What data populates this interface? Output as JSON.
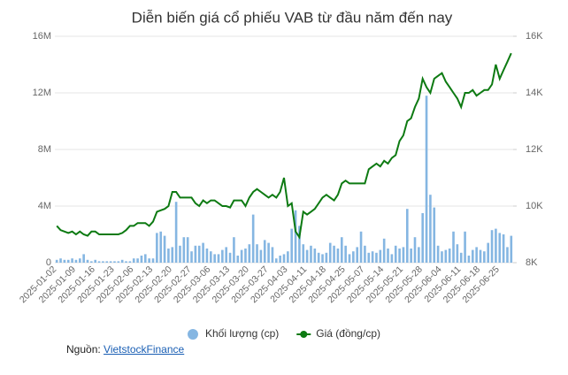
{
  "chart_data": {
    "type": "bar-line",
    "title": "Diễn biến giá cổ phiếu VAB từ đầu năm đến nay",
    "categories": [
      "2025-01-02",
      null,
      null,
      null,
      null,
      "2025-01-09",
      null,
      null,
      null,
      null,
      "2025-01-16",
      null,
      null,
      null,
      null,
      "2025-01-23",
      null,
      null,
      null,
      null,
      "2025-02-06",
      null,
      null,
      null,
      null,
      "2025-02-13",
      null,
      null,
      null,
      null,
      "2025-02-20",
      null,
      null,
      null,
      null,
      "2025-02-27",
      null,
      null,
      null,
      null,
      "2025-03-06",
      null,
      null,
      null,
      null,
      "2025-03-13",
      null,
      null,
      null,
      null,
      "2025-03-20",
      null,
      null,
      null,
      null,
      "2025-03-27",
      null,
      null,
      null,
      null,
      "2025-04-03",
      null,
      null,
      null,
      null,
      "2025-04-11",
      null,
      null,
      null,
      null,
      "2025-04-18",
      null,
      null,
      null,
      null,
      "2025-04-25",
      null,
      null,
      null,
      null,
      "2025-05-07",
      null,
      null,
      null,
      null,
      "2025-05-14",
      null,
      null,
      null,
      null,
      "2025-05-21",
      null,
      null,
      null,
      null,
      "2025-05-28",
      null,
      null,
      null,
      null,
      "2025-06-04",
      null,
      null,
      null,
      null,
      "2025-06-11",
      null,
      null,
      null,
      null,
      "2025-06-18",
      null,
      null,
      null,
      null,
      "2025-06-25",
      null,
      null,
      null
    ],
    "series": [
      {
        "name": "Khối lượng (cp)",
        "type": "bar",
        "color": "#85b6e2",
        "values": [
          0.2,
          0.3,
          0.2,
          0.2,
          0.3,
          0.2,
          0.3,
          0.6,
          0.2,
          0.1,
          0.2,
          0.1,
          0.1,
          0.1,
          0.1,
          0.1,
          0.1,
          0.2,
          0.1,
          0.1,
          0.3,
          0.3,
          0.5,
          0.6,
          0.3,
          0.3,
          2.1,
          2.2,
          1.9,
          1.0,
          1.1,
          4.3,
          1.2,
          1.8,
          1.8,
          0.8,
          1.2,
          1.2,
          1.4,
          1.0,
          0.8,
          0.6,
          0.6,
          0.9,
          1.1,
          0.7,
          1.8,
          0.5,
          0.9,
          1.0,
          1.3,
          3.4,
          1.3,
          0.9,
          1.6,
          1.4,
          1.1,
          0.3,
          0.5,
          0.6,
          0.8,
          2.4,
          3.7,
          2.6,
          1.3,
          0.9,
          1.2,
          1.0,
          0.7,
          0.6,
          0.7,
          1.4,
          1.2,
          1.0,
          1.8,
          1.2,
          0.6,
          0.8,
          1.1,
          2.2,
          1.2,
          0.7,
          0.8,
          0.7,
          0.9,
          1.7,
          1.0,
          0.6,
          1.2,
          1.0,
          1.1,
          3.8,
          1.0,
          1.8,
          1.1,
          3.5,
          11.8,
          4.8,
          3.9,
          1.2,
          0.8,
          0.9,
          1.0,
          2.2,
          1.3,
          0.7,
          2.2,
          0.5,
          0.9,
          1.1,
          0.9,
          0.8,
          1.4,
          2.3,
          2.4,
          2.1,
          2.0,
          1.1,
          1.9
        ]
      },
      {
        "name": "Giá (đồng/cp)",
        "type": "line",
        "axis": "y2",
        "color": "#0d7a12",
        "values": [
          9.3,
          9.15,
          9.1,
          9.05,
          9.1,
          9.0,
          9.1,
          9.0,
          8.95,
          9.1,
          9.1,
          9.0,
          9.0,
          9.0,
          9.0,
          9.0,
          9.0,
          9.05,
          9.15,
          9.3,
          9.3,
          9.4,
          9.4,
          9.4,
          9.3,
          9.45,
          9.8,
          9.85,
          9.9,
          10.0,
          10.5,
          10.5,
          10.3,
          10.3,
          10.3,
          10.3,
          10.1,
          10.0,
          10.2,
          10.1,
          10.2,
          10.2,
          10.1,
          10.0,
          10.0,
          9.95,
          10.2,
          10.2,
          10.2,
          10.0,
          10.3,
          10.5,
          10.6,
          10.5,
          10.4,
          10.3,
          10.4,
          10.3,
          10.5,
          11.0,
          10.0,
          10.1,
          9.1,
          8.9,
          9.8,
          9.7,
          9.8,
          9.9,
          10.1,
          10.3,
          10.4,
          10.3,
          10.2,
          10.4,
          10.8,
          10.9,
          10.8,
          10.8,
          10.8,
          10.8,
          10.8,
          11.3,
          11.4,
          11.5,
          11.4,
          11.6,
          11.5,
          11.7,
          11.8,
          12.3,
          12.5,
          13.0,
          13.1,
          13.5,
          13.8,
          14.5,
          14.2,
          14.0,
          14.5,
          14.6,
          14.7,
          14.4,
          14.2,
          14.0,
          13.8,
          13.5,
          14.0,
          14.0,
          14.1,
          13.9,
          14.0,
          14.1,
          14.1,
          14.3,
          15.0,
          14.5,
          14.8,
          15.1,
          15.4
        ]
      }
    ],
    "ylim": [
      0,
      16
    ],
    "yticks": [
      0,
      {
        "value": 4,
        "label": "4M"
      },
      {
        "value": 8,
        "label": "8M"
      },
      {
        "value": 12,
        "label": "12M"
      },
      {
        "value": 16,
        "label": "16M"
      }
    ],
    "y2lim": [
      8,
      16
    ],
    "y2ticks": [
      {
        "value": 8,
        "label": "8K"
      },
      {
        "value": 10,
        "label": "10K"
      },
      {
        "value": 12,
        "label": "12K"
      },
      {
        "value": 14,
        "label": "14K"
      },
      {
        "value": 16,
        "label": "16K"
      }
    ],
    "grid": true,
    "legend": "bottom",
    "source_label": "Nguồn:",
    "source": "VietstockFinance"
  }
}
